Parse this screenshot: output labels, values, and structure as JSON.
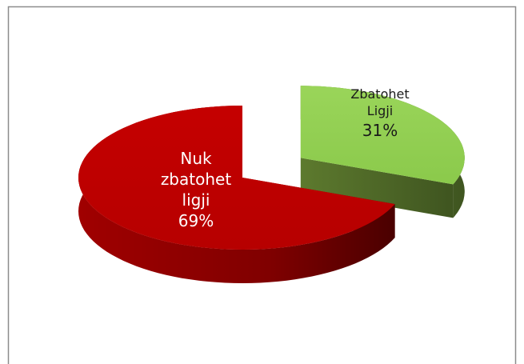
{
  "chart_data": {
    "type": "pie",
    "categories": [
      "Nuk zbatohet ligji",
      "Zbatohet Ligji"
    ],
    "values": [
      69,
      31
    ],
    "value_labels": [
      "69%",
      "31%"
    ],
    "colors": [
      "#c00000",
      "#92d050"
    ],
    "exploded": [
      false,
      true
    ],
    "three_d": true
  }
}
